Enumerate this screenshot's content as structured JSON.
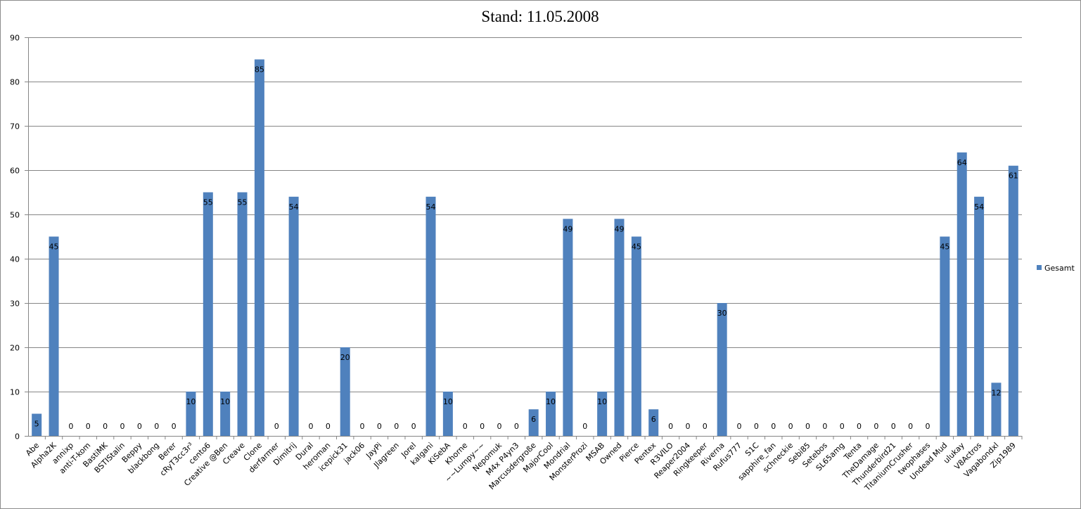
{
  "chart_data": {
    "type": "bar",
    "title": "Stand: 11.05.2008",
    "xlabel": "",
    "ylabel": "",
    "ylim": [
      0,
      90
    ],
    "yticks": [
      "0",
      "10",
      "20",
      "30",
      "40",
      "50",
      "60",
      "70",
      "80",
      "90"
    ],
    "grid": true,
    "legend_position": "right",
    "categories": [
      "Abe",
      "Alpha2K",
      "annixp",
      "anti-T-kom",
      "BastiMK",
      "BSTIStalin",
      "Beppy",
      "blackbong",
      "Berer",
      "cRyT3cc3r³",
      "cento6",
      "Creative @Ben",
      "Creave",
      "Clone",
      "derfarmer",
      "Dimitrij",
      "Dural",
      "heroman",
      "icepick31",
      "jack06",
      "JayPi",
      "Jlagreen",
      "Jorel",
      "kalgani",
      "KiSebA",
      "Khorne",
      "~~Lumpy~~",
      "Nepomuk",
      "M4x P4yn3",
      "Marcusdergroße",
      "MajorCool",
      "Mondrial",
      "MonsterProzi",
      "MSAB",
      "Owned",
      "Pierce",
      "Pentex",
      "R3VILO",
      "Reaper2004",
      "Ringkeeper",
      "Riverna",
      "Rufus777",
      "S1C",
      "sapphire_fan",
      "schneckie",
      "Sebi85",
      "Setebos",
      "SL65amg",
      "Tenta",
      "TheDamage",
      "Thunderbird21",
      "TitaniumCrusher",
      "twophases",
      "Undead Mud",
      "ulukay",
      "V8Actros",
      "Vagabondxl",
      "Zip1989"
    ],
    "series": [
      {
        "name": "Gesamt",
        "color": "#4f81bd",
        "values": [
          5,
          45,
          0,
          0,
          0,
          0,
          0,
          0,
          0,
          10,
          55,
          10,
          55,
          85,
          0,
          54,
          0,
          0,
          20,
          0,
          0,
          0,
          0,
          54,
          10,
          0,
          0,
          0,
          0,
          6,
          10,
          49,
          0,
          10,
          49,
          45,
          6,
          0,
          0,
          0,
          30,
          0,
          0,
          0,
          0,
          0,
          0,
          0,
          0,
          0,
          0,
          0,
          0,
          45,
          64,
          54,
          12,
          61
        ]
      }
    ]
  }
}
